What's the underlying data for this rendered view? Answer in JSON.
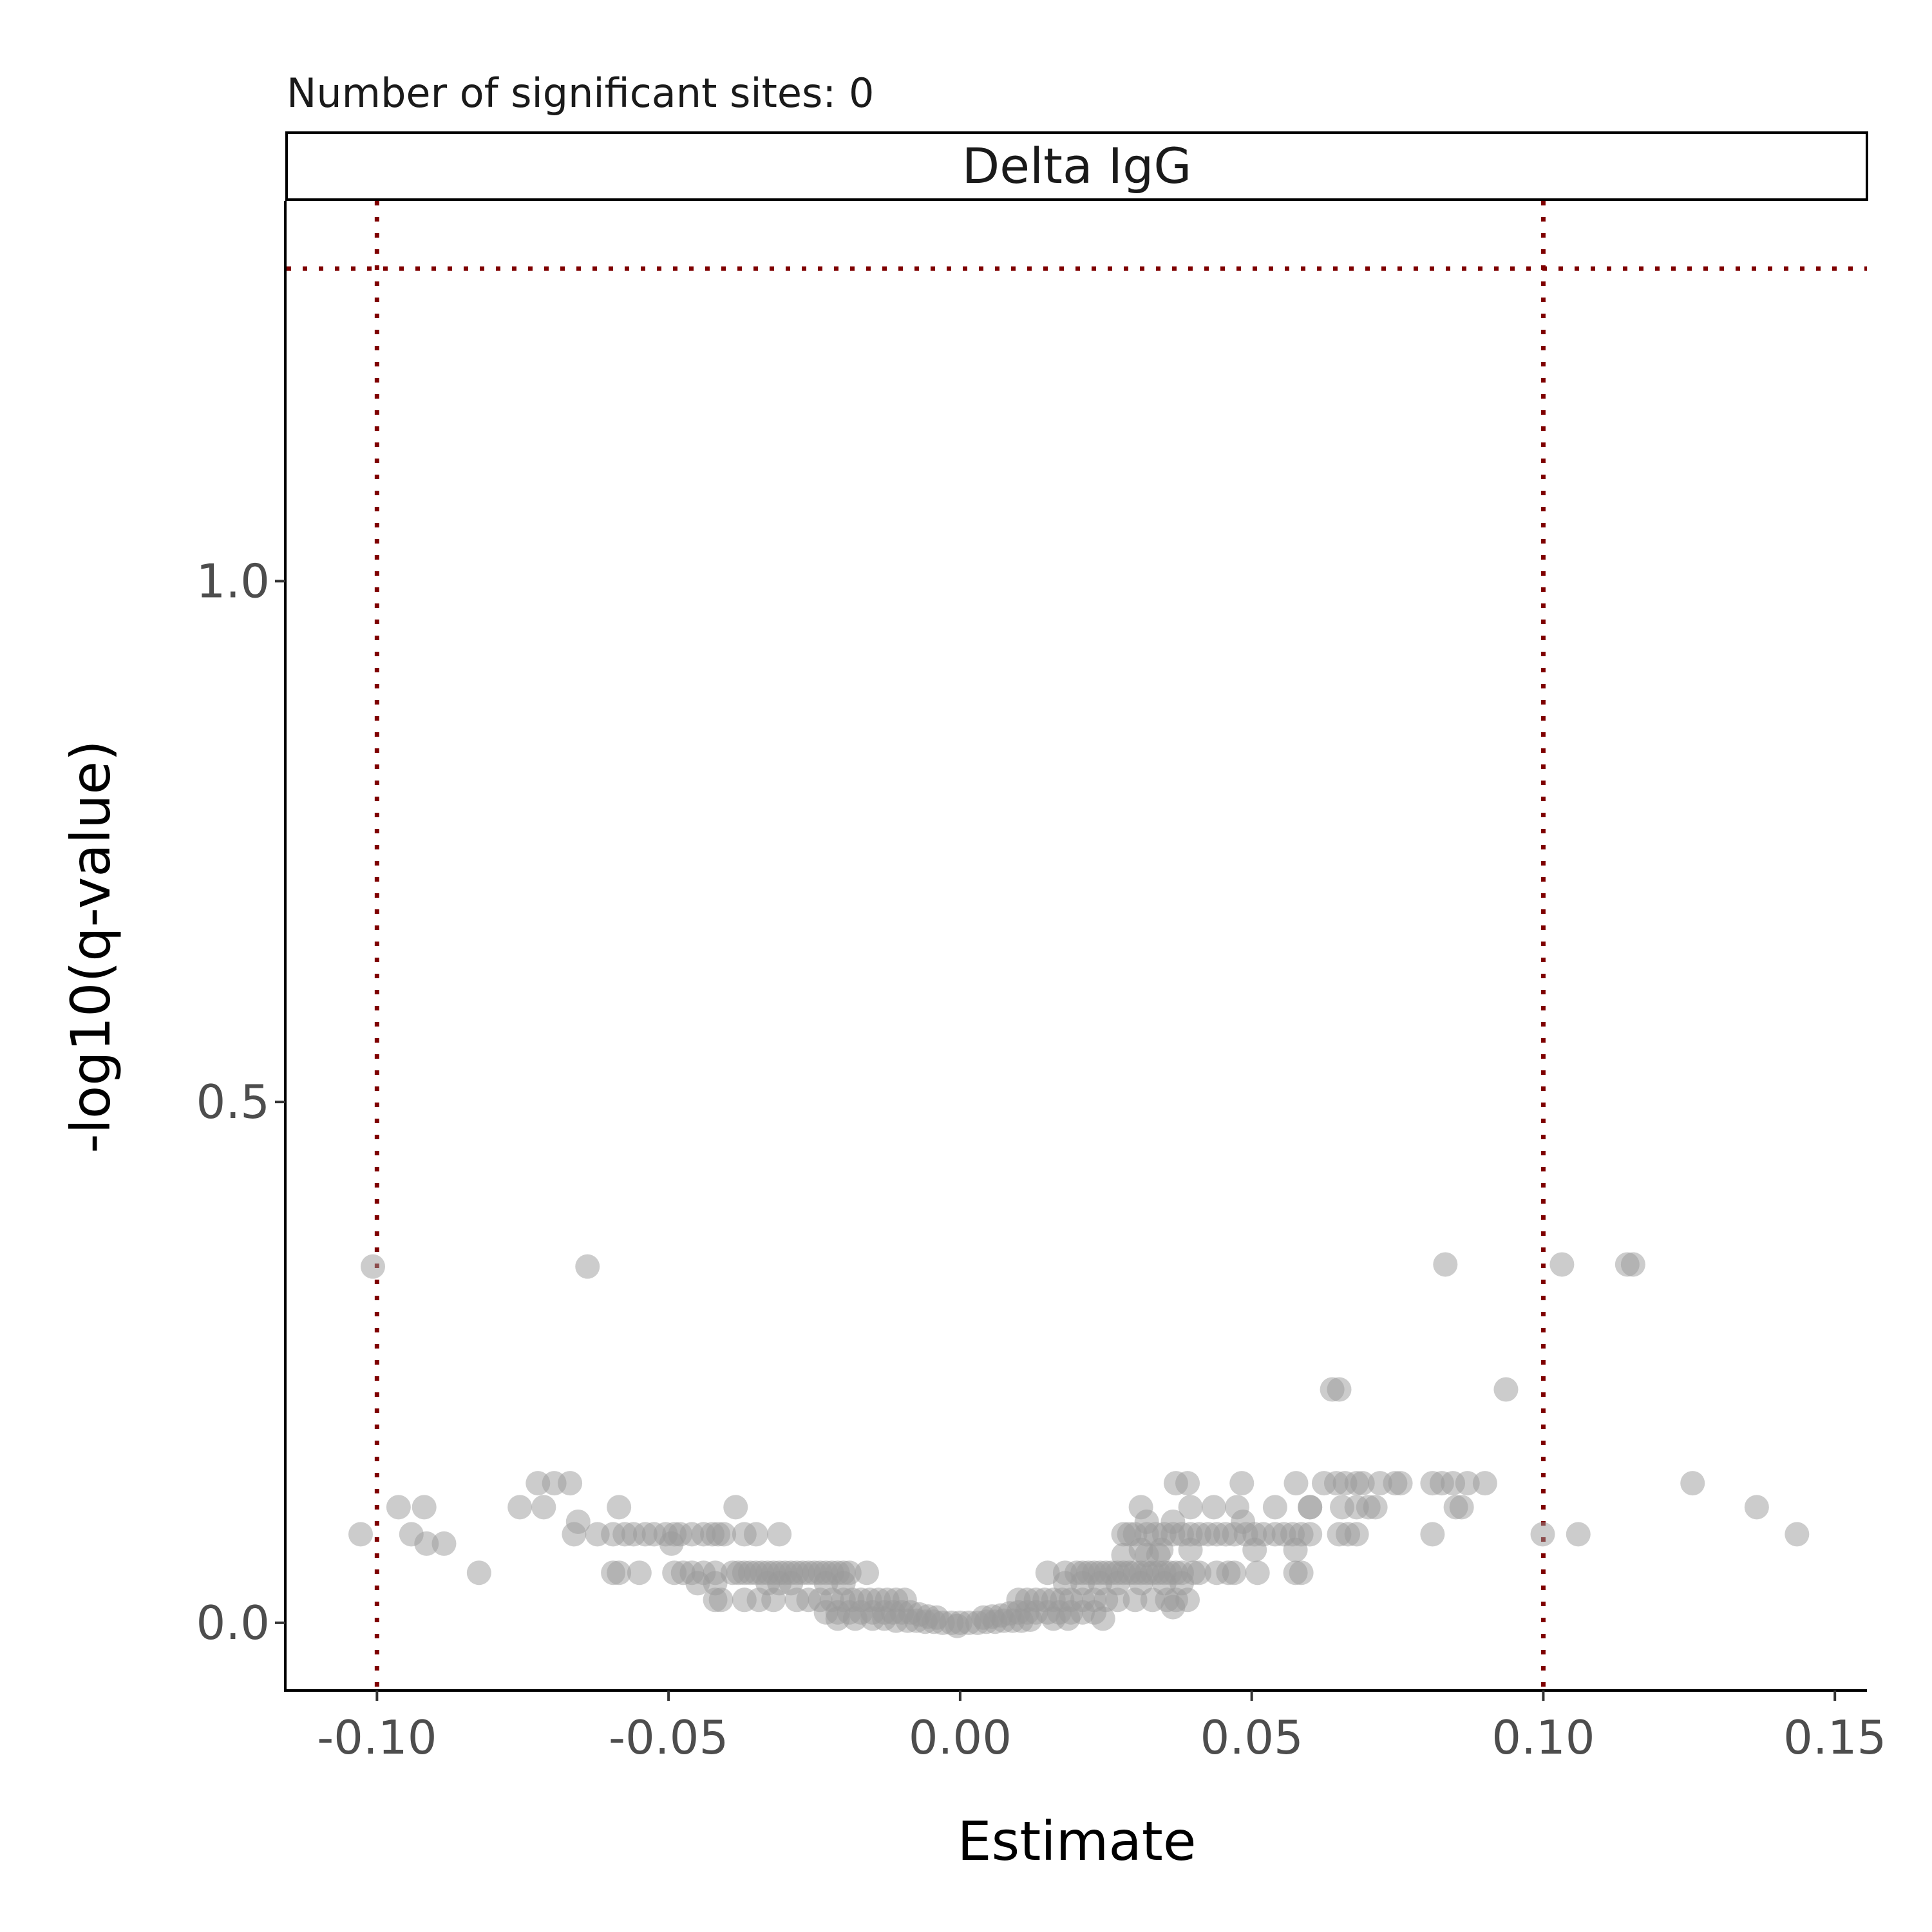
{
  "chart_data": {
    "type": "scatter",
    "subtitle": "Number of significant sites: 0",
    "facet": "Delta IgG",
    "xlabel": "Estimate",
    "ylabel": "-log10(q-value)",
    "xlim": [
      -0.1155,
      0.1555
    ],
    "ylim": [
      -0.065,
      1.365
    ],
    "x_ticks": [
      -0.1,
      -0.05,
      0.0,
      0.05,
      0.1,
      0.15
    ],
    "x_tick_labels": [
      "-0.10",
      "-0.05",
      "0.00",
      "0.05",
      "0.10",
      "0.15"
    ],
    "y_ticks": [
      0.0,
      0.5,
      1.0
    ],
    "y_tick_labels": [
      "0.0",
      "0.5",
      "1.0"
    ],
    "thresholds": {
      "x": [
        -0.1,
        0.1
      ],
      "y": 1.3
    },
    "colors": {
      "point": "#999999",
      "threshold": "#7f0000",
      "axis": "#000000",
      "tick_label": "#4d4d4d"
    },
    "legend": "none",
    "grid": false,
    "points": [
      [
        -0.1007,
        0.342
      ],
      [
        -0.0639,
        0.342
      ],
      [
        0.0832,
        0.344
      ],
      [
        0.1032,
        0.344
      ],
      [
        0.1144,
        0.344
      ],
      [
        0.1154,
        0.344
      ],
      [
        0.0638,
        0.224
      ],
      [
        0.065,
        0.224
      ],
      [
        0.0936,
        0.224
      ],
      [
        -0.0724,
        0.134
      ],
      [
        -0.0696,
        0.134
      ],
      [
        -0.0669,
        0.134
      ],
      [
        0.037,
        0.134
      ],
      [
        0.039,
        0.134
      ],
      [
        0.0483,
        0.134
      ],
      [
        0.0576,
        0.134
      ],
      [
        0.0624,
        0.134
      ],
      [
        0.0645,
        0.134
      ],
      [
        0.069,
        0.134
      ],
      [
        0.072,
        0.134
      ],
      [
        0.0746,
        0.134
      ],
      [
        0.0755,
        0.134
      ],
      [
        0.081,
        0.134
      ],
      [
        0.0826,
        0.134
      ],
      [
        0.0845,
        0.134
      ],
      [
        0.087,
        0.134
      ],
      [
        0.09,
        0.134
      ],
      [
        0.1256,
        0.134
      ],
      [
        0.066,
        0.134
      ],
      [
        0.068,
        0.134
      ],
      [
        -0.0963,
        0.111
      ],
      [
        -0.0919,
        0.111
      ],
      [
        -0.0755,
        0.111
      ],
      [
        -0.0714,
        0.111
      ],
      [
        -0.0585,
        0.111
      ],
      [
        -0.0385,
        0.111
      ],
      [
        0.031,
        0.111
      ],
      [
        0.0395,
        0.111
      ],
      [
        0.0435,
        0.111
      ],
      [
        0.0475,
        0.111
      ],
      [
        0.054,
        0.111
      ],
      [
        0.06,
        0.111
      ],
      [
        0.0655,
        0.111
      ],
      [
        0.07,
        0.111
      ],
      [
        0.0712,
        0.111
      ],
      [
        0.085,
        0.111
      ],
      [
        0.086,
        0.111
      ],
      [
        0.1366,
        0.111
      ],
      [
        0.06,
        0.111
      ],
      [
        0.068,
        0.111
      ],
      [
        -0.0655,
        0.097
      ],
      [
        0.0365,
        0.097
      ],
      [
        0.0485,
        0.097
      ],
      [
        0.032,
        0.097
      ],
      [
        -0.1028,
        0.085
      ],
      [
        -0.0941,
        0.085
      ],
      [
        -0.0662,
        0.085
      ],
      [
        -0.0622,
        0.085
      ],
      [
        -0.0595,
        0.085
      ],
      [
        -0.0575,
        0.085
      ],
      [
        -0.056,
        0.085
      ],
      [
        -0.054,
        0.085
      ],
      [
        -0.0525,
        0.085
      ],
      [
        -0.0505,
        0.085
      ],
      [
        -0.049,
        0.085
      ],
      [
        -0.048,
        0.085
      ],
      [
        -0.046,
        0.085
      ],
      [
        -0.044,
        0.085
      ],
      [
        -0.0425,
        0.085
      ],
      [
        -0.0415,
        0.085
      ],
      [
        -0.0405,
        0.085
      ],
      [
        -0.037,
        0.085
      ],
      [
        -0.035,
        0.085
      ],
      [
        -0.031,
        0.085
      ],
      [
        0.028,
        0.085
      ],
      [
        0.029,
        0.085
      ],
      [
        0.03,
        0.085
      ],
      [
        0.032,
        0.085
      ],
      [
        0.0335,
        0.085
      ],
      [
        0.035,
        0.085
      ],
      [
        0.0365,
        0.085
      ],
      [
        0.038,
        0.085
      ],
      [
        0.0395,
        0.085
      ],
      [
        0.041,
        0.085
      ],
      [
        0.0425,
        0.085
      ],
      [
        0.044,
        0.085
      ],
      [
        0.0455,
        0.085
      ],
      [
        0.047,
        0.085
      ],
      [
        0.049,
        0.085
      ],
      [
        0.0505,
        0.085
      ],
      [
        0.052,
        0.085
      ],
      [
        0.054,
        0.085
      ],
      [
        0.0555,
        0.085
      ],
      [
        0.057,
        0.085
      ],
      [
        0.0585,
        0.085
      ],
      [
        0.06,
        0.085
      ],
      [
        0.065,
        0.085
      ],
      [
        0.0665,
        0.085
      ],
      [
        0.068,
        0.085
      ],
      [
        0.081,
        0.085
      ],
      [
        0.0999,
        0.085
      ],
      [
        0.106,
        0.085
      ],
      [
        0.1435,
        0.085
      ],
      [
        -0.0915,
        0.076
      ],
      [
        -0.0885,
        0.076
      ],
      [
        -0.0495,
        0.076
      ],
      [
        0.031,
        0.07
      ],
      [
        0.0345,
        0.07
      ],
      [
        0.0395,
        0.07
      ],
      [
        0.0505,
        0.07
      ],
      [
        0.0575,
        0.07
      ],
      [
        0.028,
        0.065
      ],
      [
        0.032,
        0.065
      ],
      [
        0.034,
        0.065
      ],
      [
        -0.0825,
        0.048
      ],
      [
        -0.0595,
        0.048
      ],
      [
        -0.0585,
        0.048
      ],
      [
        -0.055,
        0.048
      ],
      [
        -0.049,
        0.048
      ],
      [
        -0.0475,
        0.048
      ],
      [
        -0.046,
        0.048
      ],
      [
        -0.044,
        0.048
      ],
      [
        -0.042,
        0.048
      ],
      [
        -0.039,
        0.048
      ],
      [
        -0.038,
        0.048
      ],
      [
        -0.037,
        0.048
      ],
      [
        -0.036,
        0.048
      ],
      [
        -0.035,
        0.048
      ],
      [
        -0.034,
        0.048
      ],
      [
        -0.033,
        0.048
      ],
      [
        -0.032,
        0.048
      ],
      [
        -0.031,
        0.048
      ],
      [
        -0.03,
        0.048
      ],
      [
        -0.029,
        0.048
      ],
      [
        -0.028,
        0.048
      ],
      [
        -0.027,
        0.048
      ],
      [
        -0.026,
        0.048
      ],
      [
        -0.025,
        0.048
      ],
      [
        -0.024,
        0.048
      ],
      [
        -0.023,
        0.048
      ],
      [
        -0.022,
        0.048
      ],
      [
        -0.021,
        0.048
      ],
      [
        -0.02,
        0.048
      ],
      [
        -0.019,
        0.048
      ],
      [
        -0.016,
        0.048
      ],
      [
        0.015,
        0.048
      ],
      [
        0.018,
        0.048
      ],
      [
        0.02,
        0.048
      ],
      [
        0.021,
        0.048
      ],
      [
        0.022,
        0.048
      ],
      [
        0.023,
        0.048
      ],
      [
        0.024,
        0.048
      ],
      [
        0.025,
        0.048
      ],
      [
        0.026,
        0.048
      ],
      [
        0.027,
        0.048
      ],
      [
        0.028,
        0.048
      ],
      [
        0.029,
        0.048
      ],
      [
        0.03,
        0.048
      ],
      [
        0.031,
        0.048
      ],
      [
        0.032,
        0.048
      ],
      [
        0.033,
        0.048
      ],
      [
        0.034,
        0.048
      ],
      [
        0.035,
        0.048
      ],
      [
        0.036,
        0.048
      ],
      [
        0.037,
        0.048
      ],
      [
        0.038,
        0.048
      ],
      [
        0.04,
        0.048
      ],
      [
        0.041,
        0.048
      ],
      [
        0.044,
        0.048
      ],
      [
        0.046,
        0.048
      ],
      [
        0.047,
        0.048
      ],
      [
        0.051,
        0.048
      ],
      [
        0.0575,
        0.048
      ],
      [
        0.0585,
        0.048
      ],
      [
        -0.045,
        0.038
      ],
      [
        -0.042,
        0.038
      ],
      [
        -0.033,
        0.038
      ],
      [
        -0.031,
        0.038
      ],
      [
        -0.029,
        0.038
      ],
      [
        -0.023,
        0.038
      ],
      [
        -0.02,
        0.038
      ],
      [
        0.018,
        0.038
      ],
      [
        0.021,
        0.038
      ],
      [
        0.024,
        0.038
      ],
      [
        0.027,
        0.038
      ],
      [
        0.031,
        0.038
      ],
      [
        0.035,
        0.038
      ],
      [
        0.038,
        0.038
      ],
      [
        -0.042,
        0.022
      ],
      [
        -0.041,
        0.022
      ],
      [
        -0.037,
        0.022
      ],
      [
        -0.0345,
        0.022
      ],
      [
        -0.032,
        0.022
      ],
      [
        -0.028,
        0.022
      ],
      [
        -0.026,
        0.022
      ],
      [
        -0.024,
        0.022
      ],
      [
        -0.022,
        0.022
      ],
      [
        -0.02,
        0.022
      ],
      [
        -0.0185,
        0.022
      ],
      [
        -0.017,
        0.022
      ],
      [
        -0.0155,
        0.022
      ],
      [
        -0.014,
        0.022
      ],
      [
        -0.0125,
        0.022
      ],
      [
        -0.011,
        0.022
      ],
      [
        -0.0095,
        0.022
      ],
      [
        0.01,
        0.022
      ],
      [
        0.0115,
        0.022
      ],
      [
        0.013,
        0.022
      ],
      [
        0.0145,
        0.022
      ],
      [
        0.016,
        0.022
      ],
      [
        0.0175,
        0.022
      ],
      [
        0.019,
        0.022
      ],
      [
        0.021,
        0.022
      ],
      [
        0.023,
        0.022
      ],
      [
        0.025,
        0.022
      ],
      [
        0.027,
        0.022
      ],
      [
        0.03,
        0.022
      ],
      [
        0.033,
        0.022
      ],
      [
        0.0355,
        0.022
      ],
      [
        0.037,
        0.022
      ],
      [
        0.039,
        0.022
      ],
      [
        0.0365,
        0.015
      ],
      [
        -0.023,
        0.01
      ],
      [
        -0.021,
        0.01
      ],
      [
        -0.019,
        0.01
      ],
      [
        -0.017,
        0.01
      ],
      [
        -0.015,
        0.01
      ],
      [
        -0.013,
        0.01
      ],
      [
        -0.0115,
        0.01
      ],
      [
        -0.01,
        0.01
      ],
      [
        -0.0085,
        0.01
      ],
      [
        -0.007,
        0.008
      ],
      [
        -0.0055,
        0.006
      ],
      [
        -0.004,
        0.005
      ],
      [
        0.004,
        0.005
      ],
      [
        0.0055,
        0.006
      ],
      [
        0.007,
        0.007
      ],
      [
        0.0085,
        0.009
      ],
      [
        0.01,
        0.01
      ],
      [
        0.0115,
        0.01
      ],
      [
        0.013,
        0.01
      ],
      [
        0.015,
        0.01
      ],
      [
        0.017,
        0.01
      ],
      [
        0.019,
        0.01
      ],
      [
        0.021,
        0.01
      ],
      [
        0.023,
        0.01
      ],
      [
        -0.021,
        0.004
      ],
      [
        -0.018,
        0.004
      ],
      [
        -0.015,
        0.004
      ],
      [
        -0.013,
        0.004
      ],
      [
        0.016,
        0.004
      ],
      [
        0.0185,
        0.004
      ],
      [
        0.0245,
        0.004
      ],
      [
        -0.011,
        0.002
      ],
      [
        -0.009,
        0.002
      ],
      [
        -0.0075,
        0.002
      ],
      [
        -0.006,
        0.001
      ],
      [
        -0.0045,
        0.001
      ],
      [
        -0.003,
        0.0
      ],
      [
        -0.0015,
        0.0
      ],
      [
        0.0,
        0.0
      ],
      [
        0.0015,
        0.0
      ],
      [
        0.003,
        0.0
      ],
      [
        0.0045,
        0.001
      ],
      [
        0.006,
        0.001
      ],
      [
        0.0075,
        0.002
      ],
      [
        0.009,
        0.002
      ],
      [
        0.0105,
        0.002
      ],
      [
        0.012,
        0.003
      ],
      [
        -0.0005,
        -0.003
      ]
    ]
  }
}
